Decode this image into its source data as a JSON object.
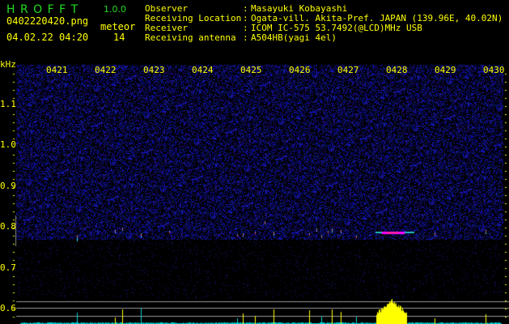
{
  "app": {
    "name": "H R O F F T",
    "version": "1.0.0"
  },
  "file": {
    "name": "0402220420.png",
    "datetime": "04.02.22 04:20"
  },
  "meteor": {
    "label": "meteor",
    "count": "14"
  },
  "info": [
    {
      "label": "Observer",
      "value": "Masayuki Kobayashi"
    },
    {
      "label": "Receiving Location",
      "value": "Ogata-vill. Akita-Pref. JAPAN (139.96E, 40.02N)"
    },
    {
      "label": "Receiver",
      "value": "ICOM IC-575 53.7492(@LCD)MHz USB"
    },
    {
      "label": "Receiving antenna",
      "value": "A504HB(yagi 4el)"
    }
  ],
  "axis": {
    "unit": "kHz",
    "freq_ticks": [
      "1.1",
      "1.0",
      "0.9",
      "0.8",
      "0.7",
      "0.6"
    ],
    "time_ticks": [
      "0421",
      "0422",
      "0423",
      "0424",
      "0425",
      "0426",
      "0427",
      "0428",
      "0429",
      "0430"
    ]
  },
  "colors": {
    "text": "#ffff00",
    "logo": "#22dd22",
    "noise": "#2020c0",
    "histogram_peak": "#ffff00",
    "histogram_base": "#00e0e0"
  }
}
